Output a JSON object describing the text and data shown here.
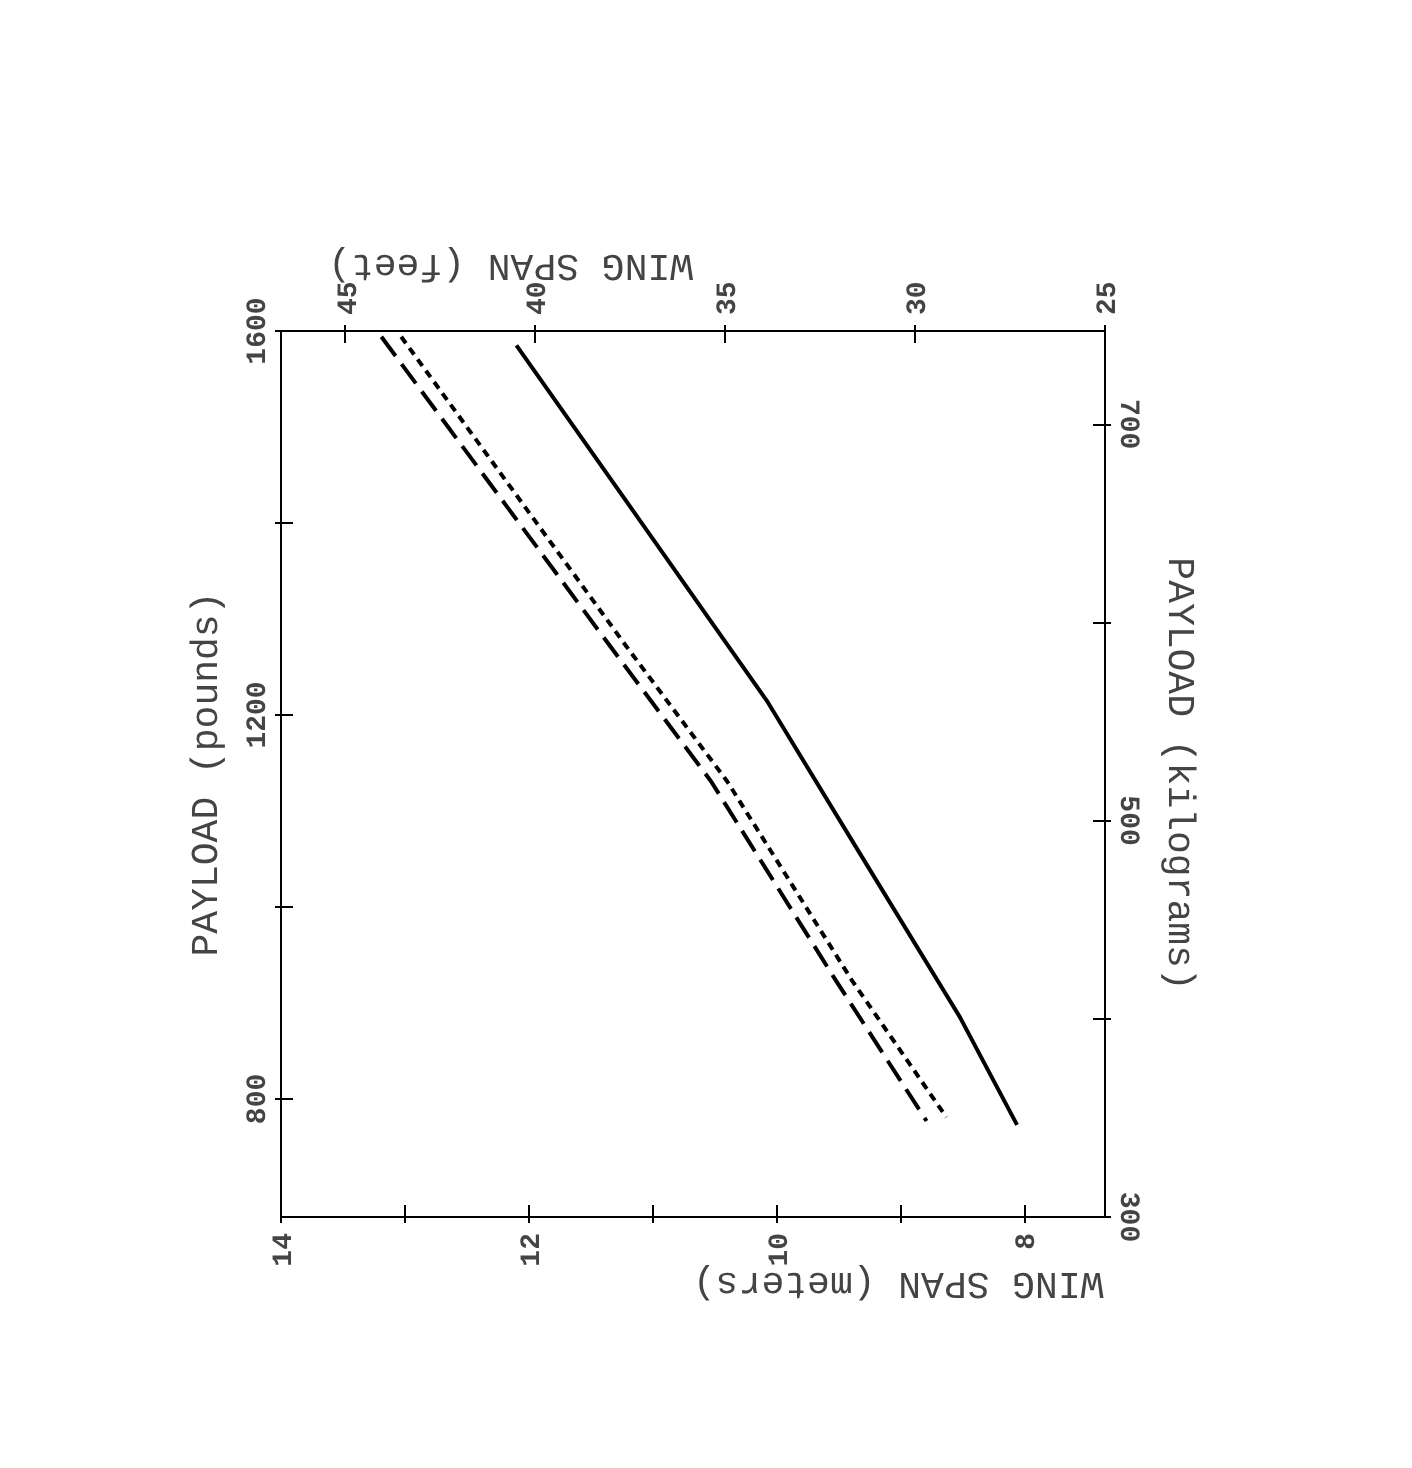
{
  "chart_data": {
    "type": "line",
    "xlabel": "WING SPAN (meters)",
    "x2label": "WING SPAN (feet)",
    "ylabel": "PAYLOAD (pounds)",
    "y2label": "PAYLOAD (kilograms)",
    "xlim": [
      14,
      7.35
    ],
    "xticks": [
      14,
      {
        "value": 13,
        "label": null
      },
      12,
      {
        "value": 11,
        "label": null
      },
      10,
      {
        "value": 9,
        "label": null
      },
      8
    ],
    "x2lim": [
      46.7,
      25
    ],
    "x2ticks": [
      45,
      40,
      35,
      30,
      25
    ],
    "ylim": [
      677,
      1600
    ],
    "yticks": [
      800,
      {
        "value": 1000,
        "label": null
      },
      1200,
      {
        "value": 1400,
        "label": null
      },
      1600
    ],
    "y2lim": [
      300,
      747
    ],
    "y2ticks": [
      300,
      {
        "value": 400,
        "label": null
      },
      500,
      {
        "value": 600,
        "label": null
      },
      700
    ],
    "grid": false,
    "series": [
      {
        "color": "#000000",
        "line_style": "solid",
        "x": [
          12.1,
          11.1,
          10.08,
          9.32,
          8.52,
          8.06
        ],
        "values": [
          1585,
          1402,
          1215,
          1054,
          885,
          773
        ]
      },
      {
        "color": "#000000",
        "line_style": "dashed",
        "x": [
          13.19,
          11.34,
          10.53,
          9.52,
          8.79
        ],
        "values": [
          1594,
          1271,
          1131,
          923,
          777
        ]
      },
      {
        "color": "#000000",
        "line_style": "dotted",
        "x": [
          13.03,
          11.21,
          10.4,
          9.39,
          8.63
        ],
        "values": [
          1594,
          1271,
          1131,
          923,
          781
        ]
      }
    ]
  }
}
